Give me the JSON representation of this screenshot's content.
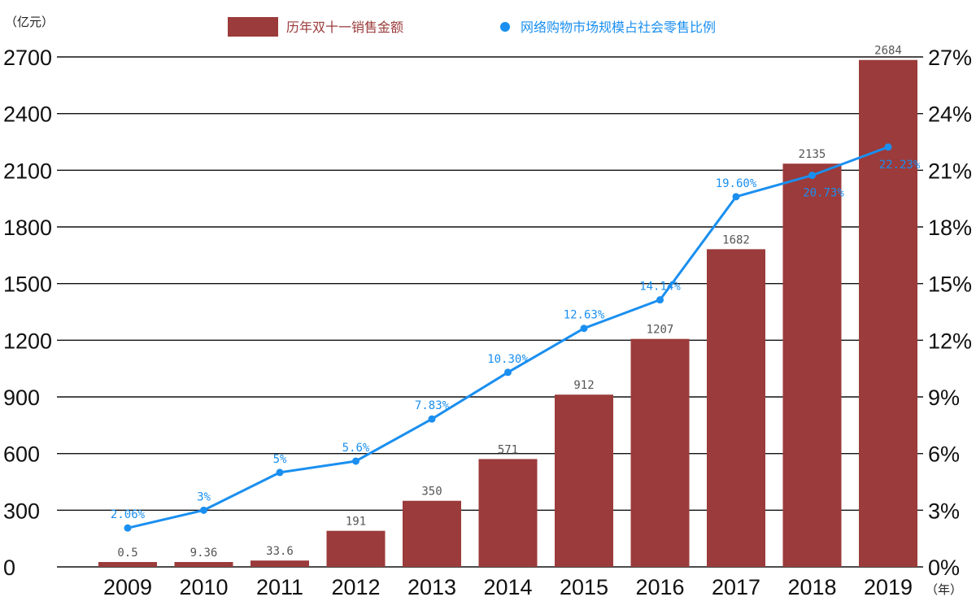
{
  "chart_data": {
    "type": "bar",
    "categories": [
      "2009",
      "2010",
      "2011",
      "2012",
      "2013",
      "2014",
      "2015",
      "2016",
      "2017",
      "2018",
      "2019"
    ],
    "series": [
      {
        "name": "历年双十一销售金额",
        "type": "bar",
        "axis": "left",
        "values": [
          0.5,
          9.36,
          33.6,
          191,
          350,
          571,
          912,
          1207,
          1682,
          2135,
          2684
        ],
        "labels": [
          "0.5",
          "9.36",
          "33.6",
          "191",
          "350",
          "571",
          "912",
          "1207",
          "1682",
          "2135",
          "2684"
        ],
        "color": "#9B3B3B"
      },
      {
        "name": "网络购物市场规模占社会零售比例",
        "type": "line",
        "axis": "right",
        "values": [
          2.06,
          3,
          5,
          5.6,
          7.83,
          10.3,
          12.63,
          14.14,
          19.6,
          20.73,
          22.23
        ],
        "labels": [
          "2.06%",
          "3%",
          "5%",
          "5.6%",
          "7.83%",
          "10.30%",
          "12.63%",
          "14.14%",
          "19.60%",
          "20.73%",
          "22.23%"
        ],
        "color": "#1A8FF0"
      }
    ],
    "y_left": {
      "unit": "（亿元）",
      "ylim": [
        0,
        2700
      ],
      "ticks": [
        "0",
        "300",
        "600",
        "900",
        "1200",
        "1500",
        "1800",
        "2100",
        "2400",
        "2700"
      ]
    },
    "y_right": {
      "ylim": [
        0,
        27
      ],
      "ticks": [
        "0%",
        "3%",
        "6%",
        "9%",
        "12%",
        "15%",
        "18%",
        "21%",
        "24%",
        "27%"
      ]
    },
    "x_unit": "（年）",
    "legend": "top",
    "grid": true
  }
}
